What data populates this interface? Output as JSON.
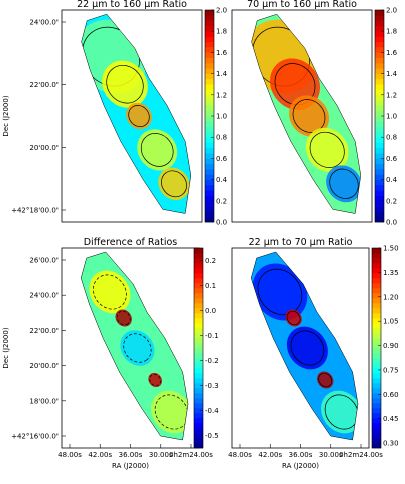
{
  "chart_data": [
    {
      "type": "heatmap",
      "title": "22 μm to 160 μm Ratio",
      "colorbar": {
        "min": 0.0,
        "max": 2.0,
        "ticks": [
          "0.0",
          "0.2",
          "0.4",
          "0.6",
          "0.8",
          "1.0",
          "1.2",
          "1.4",
          "1.6",
          "1.8",
          "2.0"
        ]
      },
      "yticks": [
        "24'00.0\"",
        "22'00.0\"",
        "20'00.0\"",
        "+42°18'00.0\""
      ],
      "xticks": [],
      "ylabel": "Dec (J2000)",
      "xlabel": "",
      "background_level": 0.72,
      "features": [
        {
          "level": 0.95,
          "r": 0.5
        },
        {
          "level": 1.25,
          "r": 0.32
        },
        {
          "level": 1.45,
          "r": 0.18
        },
        {
          "level": 1.15,
          "r": 0.28
        },
        {
          "level": 1.35,
          "r": 0.22
        }
      ],
      "contours": "solid"
    },
    {
      "type": "heatmap",
      "title": "70 μm to 160 μm Ratio",
      "colorbar": {
        "min": 0.0,
        "max": 2.0,
        "ticks": [
          "0.0",
          "0.2",
          "0.4",
          "0.6",
          "0.8",
          "1.0",
          "1.2",
          "1.4",
          "1.6",
          "1.8",
          "2.0"
        ]
      },
      "yticks": [],
      "xticks": [],
      "ylabel": "",
      "xlabel": "",
      "background_level": 0.95,
      "features": [
        {
          "level": 1.4,
          "r": 0.5
        },
        {
          "level": 1.65,
          "r": 0.35
        },
        {
          "level": 1.5,
          "r": 0.28
        },
        {
          "level": 1.2,
          "r": 0.3
        },
        {
          "level": 0.5,
          "r": 0.25
        }
      ],
      "contours": "solid"
    },
    {
      "type": "heatmap",
      "title": "Difference of Ratios",
      "colorbar": {
        "min": -0.55,
        "max": 0.25,
        "ticks": [
          "0.2",
          "0.1",
          "0.0",
          "-0.1",
          "-0.2",
          "-0.3",
          "-0.4",
          "-0.5"
        ]
      },
      "yticks": [
        "26'00.0\"",
        "24'00.0\"",
        "22'00.0\"",
        "20'00.0\"",
        "18'00.0\"",
        "+42°16'00.0\""
      ],
      "xticks": [
        "48.00s",
        "42.00s",
        "36.00s",
        "30.00s",
        "0h2m24.00s"
      ],
      "ylabel": "Dec (J2000)",
      "xlabel": "RA (J2000)",
      "background_level": -0.18,
      "features": [
        {
          "level": -0.05,
          "r": 0.3
        },
        {
          "level": 0.22,
          "r": 0.12
        },
        {
          "level": -0.28,
          "r": 0.25
        },
        {
          "level": 0.2,
          "r": 0.1
        },
        {
          "level": -0.1,
          "r": 0.3
        }
      ],
      "contours": "dashed"
    },
    {
      "type": "heatmap",
      "title": "22 μm to 70 μm Ratio",
      "colorbar": {
        "min": 0.27,
        "max": 1.5,
        "ticks": [
          "1.50",
          "1.35",
          "1.20",
          "1.05",
          "0.90",
          "0.75",
          "0.60",
          "0.45",
          "0.30"
        ]
      },
      "yticks": [],
      "xticks": [
        "48.00s",
        "42.00s",
        "36.00s",
        "30.00s",
        "0h2m24.00s"
      ],
      "ylabel": "",
      "xlabel": "RA (J2000)",
      "background_level": 0.62,
      "features": [
        {
          "level": 0.45,
          "r": 0.4
        },
        {
          "level": 1.4,
          "r": 0.12
        },
        {
          "level": 0.4,
          "r": 0.3
        },
        {
          "level": 1.45,
          "r": 0.12
        },
        {
          "level": 0.8,
          "r": 0.3
        }
      ],
      "contours": "solid"
    }
  ]
}
